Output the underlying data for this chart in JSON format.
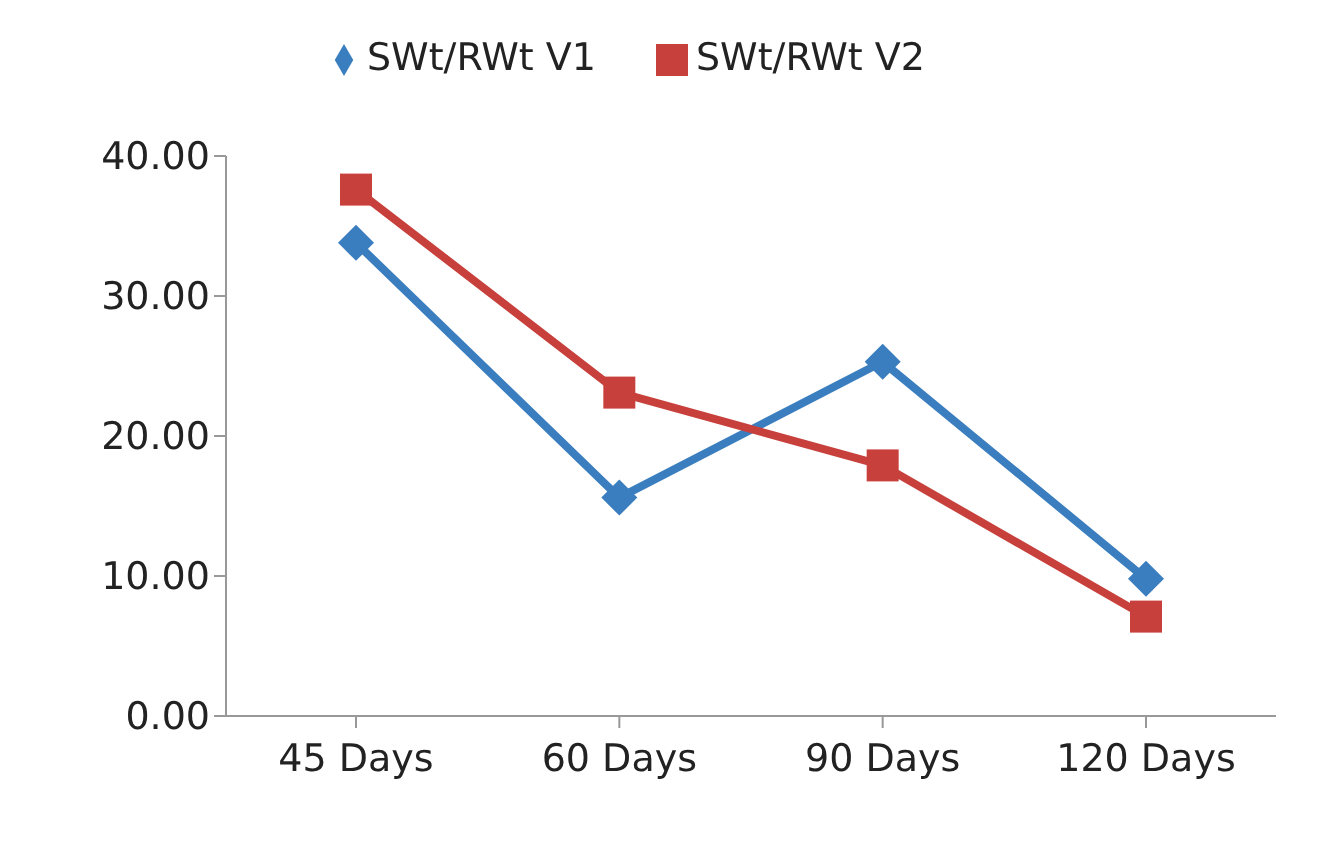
{
  "chart_data": {
    "type": "line",
    "categories": [
      "45 Days",
      "60 Days",
      "90 Days",
      "120 Days"
    ],
    "series": [
      {
        "name": "SWt/RWt V1",
        "color": "#3a7ebf",
        "marker": "diamond",
        "values": [
          33.8,
          15.6,
          25.3,
          9.8
        ]
      },
      {
        "name": "SWt/RWt V2",
        "color": "#c8403c",
        "marker": "square",
        "values": [
          37.6,
          23.1,
          17.9,
          7.1
        ]
      }
    ],
    "ylim": [
      0,
      40
    ],
    "yticks": [
      {
        "value": 0,
        "label": "0.00"
      },
      {
        "value": 10,
        "label": "10.00"
      },
      {
        "value": 20,
        "label": "20.00"
      },
      {
        "value": 30,
        "label": "30.00"
      },
      {
        "value": 40,
        "label": "40.00"
      }
    ],
    "grid": false,
    "legend": "top",
    "line_style": "solid"
  }
}
